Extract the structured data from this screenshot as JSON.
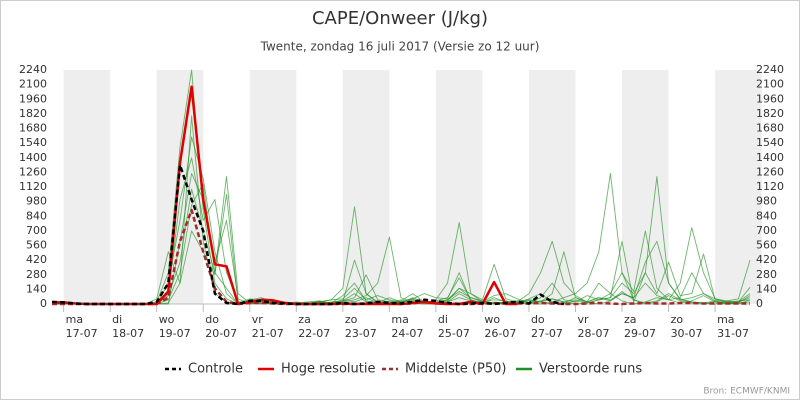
{
  "chart_data": {
    "type": "line",
    "title": "CAPE/Onweer (J/kg)",
    "subtitle": "Twente, zondag 16 juli 2017 (Versie zo 12 uur)",
    "source": "Bron: ECMWF/KNMI",
    "categories": [
      null,
      "ma 17-07",
      null,
      null,
      null,
      "di 18-07",
      null,
      null,
      null,
      "wo 19-07",
      null,
      null,
      null,
      "do 20-07",
      null,
      null,
      null,
      "vr 21-07",
      null,
      null,
      null,
      "za 22-07",
      null,
      null,
      null,
      "zo 23-07",
      null,
      null,
      null,
      "ma 24-07",
      null,
      null,
      null,
      "di 25-07",
      null,
      null,
      null,
      "wo 26-07",
      null,
      null,
      null,
      "do 27-07",
      null,
      null,
      null,
      "vr 28-07",
      null,
      null,
      null,
      "za 29-07",
      null,
      null,
      null,
      "zo 30-07",
      null,
      null,
      null,
      "ma 31-07",
      null,
      null,
      null
    ],
    "ylim": [
      0,
      2240
    ],
    "yticks": [
      0,
      140,
      280,
      420,
      560,
      700,
      840,
      980,
      1120,
      1260,
      1400,
      1540,
      1680,
      1820,
      1960,
      2100,
      2240
    ],
    "y2lim": [
      0,
      2240
    ],
    "y2ticks": [
      0,
      140,
      280,
      420,
      560,
      700,
      840,
      980,
      1120,
      1260,
      1400,
      1540,
      1680,
      1820,
      1960,
      2100,
      2240
    ],
    "series": [
      {
        "name": "Controle",
        "color": "#000000",
        "dash": true,
        "values": [
          20,
          15,
          5,
          0,
          0,
          0,
          0,
          0,
          0,
          20,
          200,
          1330,
          1000,
          700,
          100,
          10,
          0,
          30,
          30,
          10,
          5,
          0,
          0,
          0,
          0,
          10,
          0,
          5,
          20,
          10,
          5,
          20,
          40,
          30,
          10,
          0,
          5,
          10,
          0,
          10,
          20,
          5,
          90,
          20,
          0,
          null,
          null,
          null,
          null,
          null,
          null,
          null,
          null,
          null,
          null,
          null,
          null,
          null,
          null,
          null,
          null
        ]
      },
      {
        "name": "Hoge resolutie",
        "color": "#e00000",
        "values": [
          15,
          15,
          5,
          0,
          0,
          0,
          0,
          0,
          0,
          0,
          120,
          1350,
          2080,
          1000,
          380,
          360,
          0,
          20,
          40,
          35,
          10,
          0,
          0,
          0,
          0,
          5,
          0,
          0,
          0,
          0,
          0,
          10,
          20,
          5,
          0,
          0,
          20,
          0,
          210,
          0,
          0,
          null,
          null,
          null,
          null,
          null,
          null,
          null,
          null,
          null,
          null,
          null,
          null,
          null,
          null,
          null,
          null,
          null,
          null,
          null,
          null
        ]
      },
      {
        "name": "Middelste (P50)",
        "color": "#a52a2a",
        "dash": true,
        "values": [
          0,
          0,
          0,
          0,
          0,
          0,
          0,
          0,
          0,
          0,
          60,
          600,
          900,
          500,
          150,
          20,
          0,
          10,
          10,
          5,
          0,
          0,
          0,
          0,
          0,
          0,
          0,
          5,
          10,
          5,
          0,
          5,
          20,
          10,
          5,
          0,
          0,
          5,
          10,
          5,
          5,
          5,
          10,
          5,
          0,
          0,
          5,
          10,
          5,
          0,
          5,
          10,
          5,
          5,
          10,
          10,
          5,
          5,
          5,
          5,
          5
        ]
      },
      {
        "name": "Verstoorde runs",
        "color": "#1f8f1f",
        "runs": [
          [
            0,
            0,
            0,
            0,
            0,
            0,
            0,
            0,
            0,
            20,
            300,
            1500,
            2240,
            900,
            200,
            50,
            0,
            30,
            20,
            10,
            0,
            0,
            0,
            0,
            10,
            30,
            100,
            20,
            0,
            10,
            40,
            10,
            0,
            0,
            20,
            100,
            40,
            0,
            10,
            0,
            10,
            30,
            20,
            0,
            10,
            60,
            20,
            0,
            30,
            120,
            40,
            0,
            20,
            80,
            30,
            10,
            0,
            20,
            10,
            0,
            40
          ],
          [
            0,
            0,
            0,
            0,
            0,
            0,
            0,
            0,
            0,
            0,
            80,
            400,
            1100,
            700,
            300,
            1220,
            100,
            10,
            40,
            20,
            0,
            0,
            10,
            20,
            40,
            150,
            930,
            100,
            10,
            30,
            20,
            40,
            10,
            0,
            20,
            60,
            30,
            10,
            0,
            20,
            0,
            10,
            30,
            50,
            20,
            0,
            10,
            40,
            100,
            30,
            0,
            20,
            60,
            40,
            10,
            30,
            80,
            20,
            0,
            10,
            20
          ],
          [
            0,
            0,
            0,
            0,
            0,
            0,
            0,
            0,
            0,
            0,
            200,
            800,
            1600,
            1200,
            500,
            100,
            0,
            20,
            10,
            0,
            10,
            0,
            0,
            20,
            10,
            40,
            20,
            60,
            10,
            0,
            20,
            30,
            10,
            40,
            200,
            780,
            100,
            20,
            10,
            0,
            30,
            10,
            0,
            20,
            60,
            100,
            200,
            500,
            1250,
            300,
            40,
            10,
            30,
            100,
            40,
            20,
            10,
            0,
            30,
            20,
            60
          ],
          [
            10,
            10,
            0,
            0,
            0,
            0,
            0,
            0,
            0,
            50,
            500,
            200,
            1800,
            600,
            100,
            20,
            10,
            50,
            30,
            10,
            0,
            10,
            20,
            30,
            0,
            20,
            40,
            80,
            200,
            640,
            60,
            20,
            30,
            10,
            40,
            120,
            60,
            30,
            10,
            20,
            10,
            50,
            100,
            20,
            0,
            30,
            10,
            40,
            60,
            200,
            100,
            300,
            1220,
            200,
            50,
            20,
            10,
            30,
            0,
            20,
            100
          ],
          [
            0,
            0,
            0,
            0,
            0,
            0,
            0,
            0,
            0,
            0,
            100,
            1000,
            1400,
            800,
            1000,
            300,
            20,
            10,
            0,
            20,
            10,
            0,
            0,
            0,
            20,
            30,
            60,
            280,
            40,
            20,
            10,
            60,
            20,
            10,
            30,
            150,
            100,
            40,
            380,
            50,
            20,
            100,
            300,
            600,
            200,
            80,
            20,
            60,
            40,
            100,
            60,
            200,
            80,
            40,
            200,
            730,
            300,
            50,
            20,
            10,
            80
          ],
          [
            0,
            0,
            0,
            0,
            0,
            0,
            0,
            0,
            0,
            0,
            0,
            600,
            1250,
            1000,
            400,
            800,
            50,
            0,
            10,
            0,
            0,
            20,
            0,
            10,
            0,
            20,
            420,
            100,
            20,
            0,
            30,
            100,
            20,
            30,
            60,
            250,
            40,
            10,
            60,
            20,
            30,
            40,
            20,
            100,
            500,
            60,
            20,
            200,
            100,
            300,
            120,
            700,
            150,
            40,
            60,
            300,
            100,
            50,
            30,
            50,
            420
          ],
          [
            0,
            0,
            0,
            0,
            0,
            0,
            0,
            0,
            0,
            0,
            40,
            300,
            950,
            1150,
            300,
            150,
            0,
            40,
            60,
            20,
            10,
            0,
            5,
            20,
            40,
            50,
            150,
            40,
            80,
            40,
            20,
            50,
            100,
            60,
            50,
            300,
            30,
            20,
            80,
            100,
            50,
            10,
            60,
            200,
            40,
            20,
            80,
            40,
            60,
            600,
            20,
            300,
            100,
            400,
            80,
            100,
            480,
            40,
            20,
            30,
            40
          ],
          [
            0,
            0,
            0,
            0,
            0,
            0,
            0,
            0,
            0,
            0,
            10,
            200,
            700,
            500,
            280,
            1050,
            20,
            0,
            30,
            0,
            20,
            10,
            0,
            30,
            10,
            80,
            200,
            30,
            10,
            60,
            20,
            50,
            10,
            20,
            40,
            150,
            60,
            20,
            40,
            30,
            10,
            40,
            20,
            50,
            20,
            40,
            20,
            60,
            30,
            100,
            60,
            400,
            600,
            200,
            40,
            60,
            100,
            30,
            10,
            20,
            160
          ]
        ]
      }
    ],
    "legend": "bottom"
  }
}
